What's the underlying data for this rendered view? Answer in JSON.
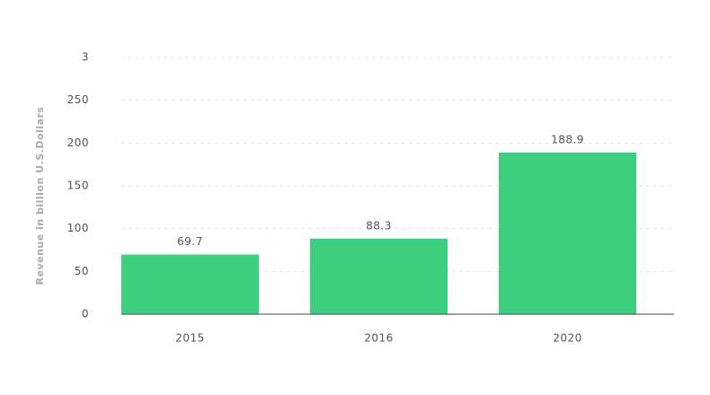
{
  "chart_data": {
    "type": "bar",
    "y_label": "Revenue in billion U.S.Dollars",
    "categories": [
      "2015",
      "2016",
      "2020"
    ],
    "values": [
      69.7,
      88.3,
      188.9
    ],
    "color": "#3dcf7f",
    "ylim": [
      0,
      300
    ],
    "yticks": [
      0,
      50,
      100,
      150,
      200,
      250,
      {
        "value": 300,
        "label": "3"
      }
    ],
    "grid": true
  }
}
